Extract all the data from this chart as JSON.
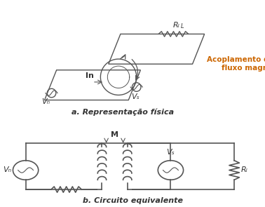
{
  "title_a": "a. Representação física",
  "title_b": "b. Circuito equivalente",
  "label_Vn": "Vₙ",
  "label_Vs_phys": "Vₛ",
  "label_Vs_circ": "Vₛ",
  "label_In": "In",
  "label_RL_phys": "Rₗ",
  "label_RL_circ": "Rₗ",
  "label_M": "M",
  "label_coupling": "Acoplamento devido ao\nfluxo magnético",
  "line_color": "#555555",
  "text_color": "#333333",
  "bg_color": "#ffffff",
  "highlight_color": "#cc6600"
}
